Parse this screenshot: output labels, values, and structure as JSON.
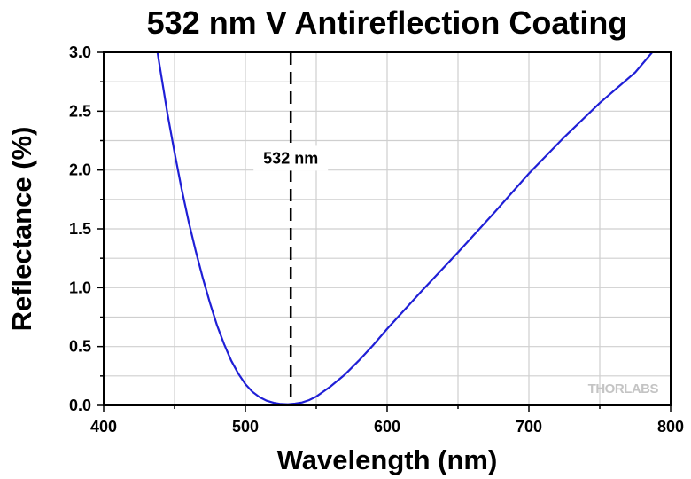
{
  "chart_data": {
    "type": "line",
    "title": "532 nm V Antireflection Coating",
    "xlabel": "Wavelength (nm)",
    "ylabel": "Reflectance (%)",
    "xlim": [
      400,
      800
    ],
    "ylim": [
      0,
      3.0
    ],
    "x_ticks": [
      "400",
      "500",
      "600",
      "700",
      "800"
    ],
    "y_ticks": [
      "0.0",
      "0.5",
      "1.0",
      "1.5",
      "2.0",
      "2.5",
      "3.0"
    ],
    "grid": true,
    "legend": "none",
    "series": [
      {
        "color": "#1f1fd6",
        "x": [
          438,
          440,
          445,
          450,
          455,
          460,
          465,
          470,
          475,
          480,
          485,
          490,
          495,
          500,
          505,
          510,
          515,
          520,
          525,
          530,
          535,
          540,
          545,
          550,
          560,
          570,
          580,
          590,
          600,
          625,
          650,
          675,
          700,
          725,
          750,
          775,
          787
        ],
        "y": [
          3.0,
          2.85,
          2.48,
          2.15,
          1.84,
          1.56,
          1.31,
          1.08,
          0.87,
          0.68,
          0.52,
          0.38,
          0.27,
          0.18,
          0.115,
          0.07,
          0.04,
          0.022,
          0.012,
          0.01,
          0.015,
          0.025,
          0.045,
          0.075,
          0.16,
          0.26,
          0.38,
          0.51,
          0.65,
          0.98,
          1.3,
          1.63,
          1.97,
          2.28,
          2.57,
          2.83,
          3.0
        ]
      }
    ],
    "annotations": [
      {
        "text": "532 nm",
        "x": 532,
        "style": "dashed-vertical-line"
      }
    ],
    "watermark": "THORLABS"
  }
}
